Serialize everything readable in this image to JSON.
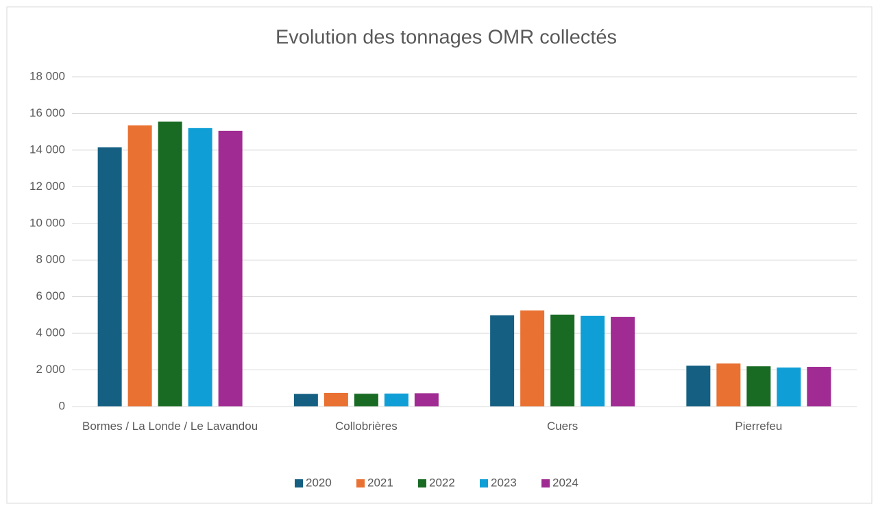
{
  "chart_data": {
    "type": "bar",
    "title": "Evolution des tonnages OMR collectés",
    "categories": [
      "Bormes / La Londe / Le Lavandou",
      "Collobrières",
      "Cuers",
      "Pierrefeu"
    ],
    "series": [
      {
        "name": "2020",
        "color": "#156082",
        "values": [
          14150,
          690,
          4980,
          2230
        ]
      },
      {
        "name": "2021",
        "color": "#e97132",
        "values": [
          15350,
          750,
          5250,
          2350
        ]
      },
      {
        "name": "2022",
        "color": "#196b24",
        "values": [
          15550,
          700,
          5020,
          2200
        ]
      },
      {
        "name": "2023",
        "color": "#0f9ed5",
        "values": [
          15200,
          710,
          4950,
          2130
        ]
      },
      {
        "name": "2024",
        "color": "#a02b93",
        "values": [
          15050,
          730,
          4900,
          2170
        ]
      }
    ],
    "ylim": [
      0,
      18000
    ],
    "yticks": [
      0,
      {
        "value": 2000,
        "label": "2 000"
      },
      {
        "value": 4000,
        "label": "4 000"
      },
      {
        "value": 6000,
        "label": "6 000"
      },
      {
        "value": 8000,
        "label": "8 000"
      },
      {
        "value": 10000,
        "label": "10 000"
      },
      {
        "value": 12000,
        "label": "12 000"
      },
      {
        "value": 14000,
        "label": "14 000"
      },
      {
        "value": 16000,
        "label": "16 000"
      },
      {
        "value": 18000,
        "label": "18 000"
      }
    ],
    "grid": true,
    "legend": "bottom"
  }
}
